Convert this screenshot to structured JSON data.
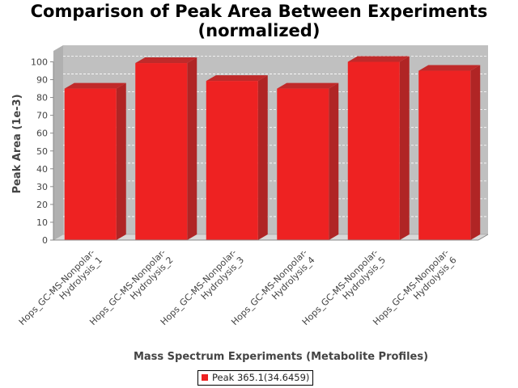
{
  "chart_data": {
    "type": "bar",
    "title_lines": [
      "Comparison of Peak Area Between Experiments",
      "(normalized)"
    ],
    "xlabel": "Mass Spectrum Experiments (Metabolite Profiles)",
    "ylabel": "Peak Area (1e-3)",
    "ylim": [
      0,
      100
    ],
    "yticks": [
      0,
      10,
      20,
      30,
      40,
      50,
      60,
      70,
      80,
      90,
      100
    ],
    "categories": [
      [
        "Hops_GC-MS-Nonpolar-",
        "Hydrolysis_1"
      ],
      [
        "Hops_GC-MS-Nonpolar-",
        "Hydrolysis_2"
      ],
      [
        "Hops_GC-MS-Nonpolar-",
        "Hydrolysis_3"
      ],
      [
        "Hops_GC-MS-Nonpolar-",
        "Hydrolysis_4"
      ],
      [
        "Hops_GC-MS-Nonpolar-",
        "Hydrolysis_5"
      ],
      [
        "Hops_GC-MS-Nonpolar-",
        "Hydrolysis_6"
      ]
    ],
    "series": [
      {
        "name": "Peak 365.1(34.6459)",
        "values": [
          85.0,
          99.3,
          89.3,
          85.0,
          100.0,
          95.0
        ]
      }
    ],
    "legend_position": "bottom",
    "grid": true,
    "bar_color": "#ee2222",
    "plot_background": "#c0c0c0"
  }
}
